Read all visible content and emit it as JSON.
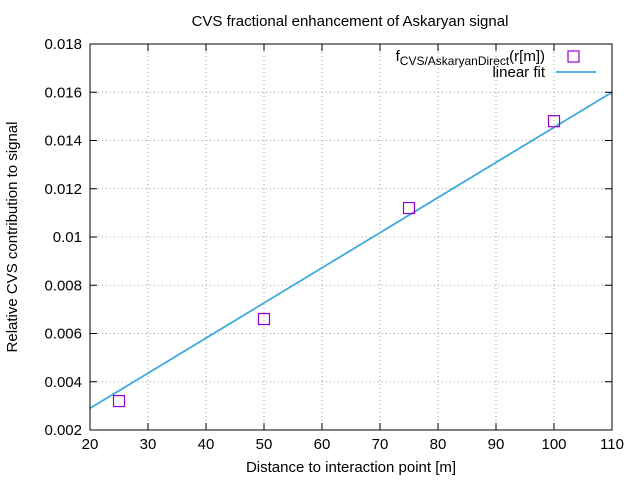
{
  "chart_data": {
    "type": "scatter",
    "title": "CVS fractional enhancement of Askaryan signal",
    "xlabel": "Distance to interaction point [m]",
    "ylabel": "Relative CVS contribution to signal",
    "xlim": [
      20,
      110
    ],
    "ylim": [
      0.002,
      0.018
    ],
    "xticks": [
      20,
      30,
      40,
      50,
      60,
      70,
      80,
      90,
      100,
      110
    ],
    "yticks": [
      0.002,
      0.004,
      0.006,
      0.008,
      0.01,
      0.012,
      0.014,
      0.016,
      0.018
    ],
    "ytick_labels": [
      "0.002",
      "0.004",
      "0.006",
      "0.008",
      "0.01",
      "0.012",
      "0.014",
      "0.016",
      "0.018"
    ],
    "grid": true,
    "legend_position": "top-right",
    "series": [
      {
        "name": "fCVS/AskaryanDirect(r[m])",
        "name_main": "f",
        "name_sub": "CVS/AskaryanDirect",
        "name_tail": "(r[m])",
        "kind": "points",
        "marker": "open-square",
        "color": "#9400d3",
        "x": [
          25,
          50,
          75,
          100
        ],
        "y": [
          0.0032,
          0.0066,
          0.0112,
          0.0148
        ]
      },
      {
        "name": "linear fit",
        "kind": "line",
        "color": "#3ea9dc",
        "x": [
          20,
          110
        ],
        "y": [
          0.0029,
          0.016
        ]
      }
    ]
  }
}
